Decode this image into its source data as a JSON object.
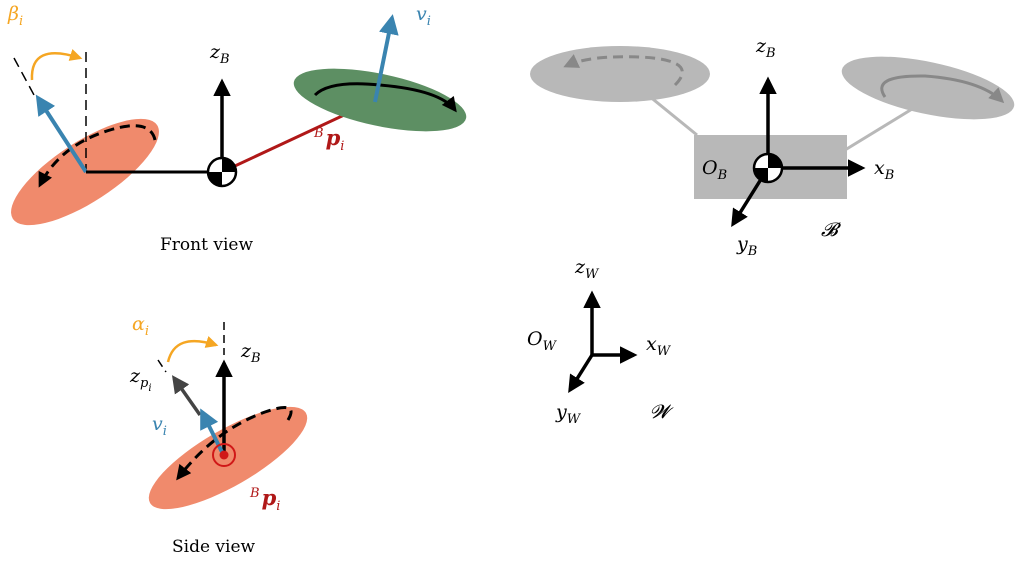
{
  "front_view": {
    "caption": "Front view",
    "beta": "β",
    "beta_sub": "i",
    "v": "v",
    "v_sub": "i",
    "zB": "z",
    "zB_sub": "B",
    "p_sup": "B",
    "p": "p",
    "p_sub": "i"
  },
  "side_view": {
    "caption": "Side view",
    "alpha": "α",
    "alpha_sub": "i",
    "zB": "z",
    "zB_sub": "B",
    "zp": "z",
    "zp_sub": "p",
    "zp_subsub": "i",
    "v": "v",
    "v_sub": "i",
    "p_sup": "B",
    "p": "p",
    "p_sub": "i"
  },
  "body_frame": {
    "zB": "z",
    "zB_sub": "B",
    "xB": "x",
    "xB_sub": "B",
    "yB": "y",
    "yB_sub": "B",
    "OB": "O",
    "OB_sub": "B",
    "frame": "𝓑"
  },
  "world_frame": {
    "zW": "z",
    "zW_sub": "W",
    "xW": "x",
    "xW_sub": "W",
    "yW": "y",
    "yW_sub": "W",
    "OW": "O",
    "OW_sub": "W",
    "frame": "𝓦"
  },
  "colors": {
    "orange": "#f5a623",
    "blue": "#3a84b0",
    "red": "#b01818",
    "salmon": "#f08a6c",
    "green": "#5d8f63",
    "gray": "#b8b8b8",
    "black": "#000000"
  }
}
